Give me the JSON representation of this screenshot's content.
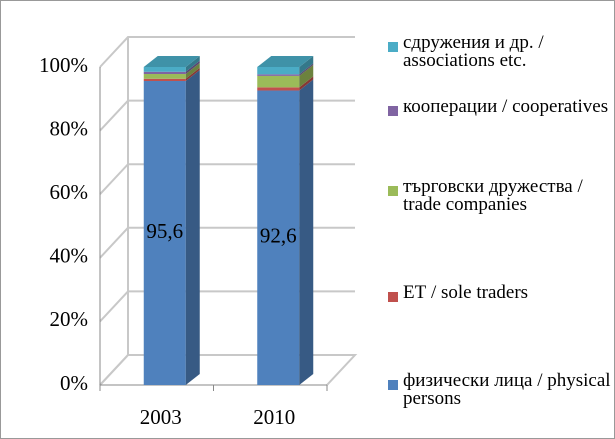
{
  "chart_data": {
    "type": "bar3d_stacked",
    "categories": [
      "2003",
      "2010"
    ],
    "series": [
      {
        "name": "физически лица / physical persons",
        "color": "#4f81bd",
        "values": [
          95.6,
          92.6
        ],
        "value_labels": [
          "95,6",
          "92,6"
        ]
      },
      {
        "name": "ЕТ / sole traders",
        "color": "#c0504d",
        "values": [
          0.7,
          1.0
        ]
      },
      {
        "name": "търговски дружества / trade companies",
        "color": "#9bbb59",
        "values": [
          1.5,
          3.6
        ]
      },
      {
        "name": "кооперации / cooperatives",
        "color": "#8064a2",
        "values": [
          0.7,
          0.5
        ]
      },
      {
        "name": "сдружения и др. / associations etc.",
        "color": "#4bacc6",
        "values": [
          1.5,
          2.3
        ]
      }
    ],
    "ylim": [
      0,
      100
    ],
    "yticks": [
      {
        "value": 0,
        "label": "0%"
      },
      {
        "value": 20,
        "label": "20%"
      },
      {
        "value": 40,
        "label": "40%"
      },
      {
        "value": 60,
        "label": "60%"
      },
      {
        "value": 80,
        "label": "80%"
      },
      {
        "value": 100,
        "label": "100%"
      }
    ],
    "grid": true
  }
}
